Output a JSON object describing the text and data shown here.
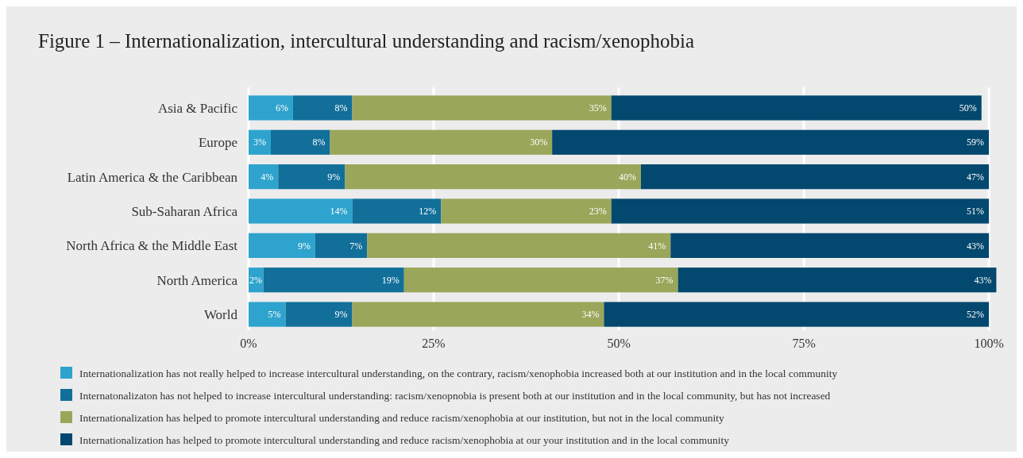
{
  "chart_data": {
    "type": "bar",
    "orientation": "horizontal",
    "stacked": true,
    "title": "Figure 1 – Internationalization, intercultural understanding and racism/xenophobia",
    "categories": [
      "Asia & Pacific",
      "Europe",
      "Latin America & the Caribbean",
      "Sub-Saharan Africa",
      "North Africa & the Middle East",
      "North America",
      "World"
    ],
    "series": [
      {
        "name": "Internationalization has not really helped to increase intercultural understanding, on the contrary, racism/xenophobia increased both at our institution and in the local community",
        "color": "#2ea3cd",
        "values": [
          6,
          3,
          4,
          14,
          9,
          2,
          5
        ]
      },
      {
        "name": "Internatonalizaton has not helped to increase intercultural understanding: racism/xenopnobia is present both at our institution and in the local community, but has not increased",
        "color": "#116f9a",
        "values": [
          8,
          8,
          9,
          12,
          7,
          19,
          9
        ]
      },
      {
        "name": "Internationalization has helped to promote intercultural understanding and reduce racism/xenophobia at our institution, but not in the local community",
        "color": "#9aa65a",
        "values": [
          35,
          30,
          40,
          23,
          41,
          37,
          34
        ]
      },
      {
        "name": "Internationalization has helped to promote intercultural understanding and reduce racism/xenophobia at our your institution and in the local community",
        "color": "#03486e",
        "values": [
          50,
          59,
          47,
          51,
          43,
          43,
          52
        ]
      }
    ],
    "xlim": [
      0,
      101
    ],
    "xticks": [
      {
        "value": 0,
        "label": "0%"
      },
      {
        "value": 25,
        "label": "25%"
      },
      {
        "value": 50,
        "label": "50%"
      },
      {
        "value": 75,
        "label": "75%"
      },
      {
        "value": 100,
        "label": "100%"
      }
    ],
    "grid": "x",
    "legend": "bottom",
    "value_labels": [
      [
        "6%",
        "3%",
        "4%",
        "14%",
        "9%",
        "2%",
        "5%"
      ],
      [
        "8%",
        "8%",
        "9%",
        "12%",
        "7%",
        "19%",
        "9%"
      ],
      [
        "35%",
        "30%",
        "40%",
        "23%",
        "41%",
        "37%",
        "34%"
      ],
      [
        "50%",
        "59%",
        "47%",
        "51%",
        "43%",
        "43%",
        "52%"
      ]
    ]
  }
}
